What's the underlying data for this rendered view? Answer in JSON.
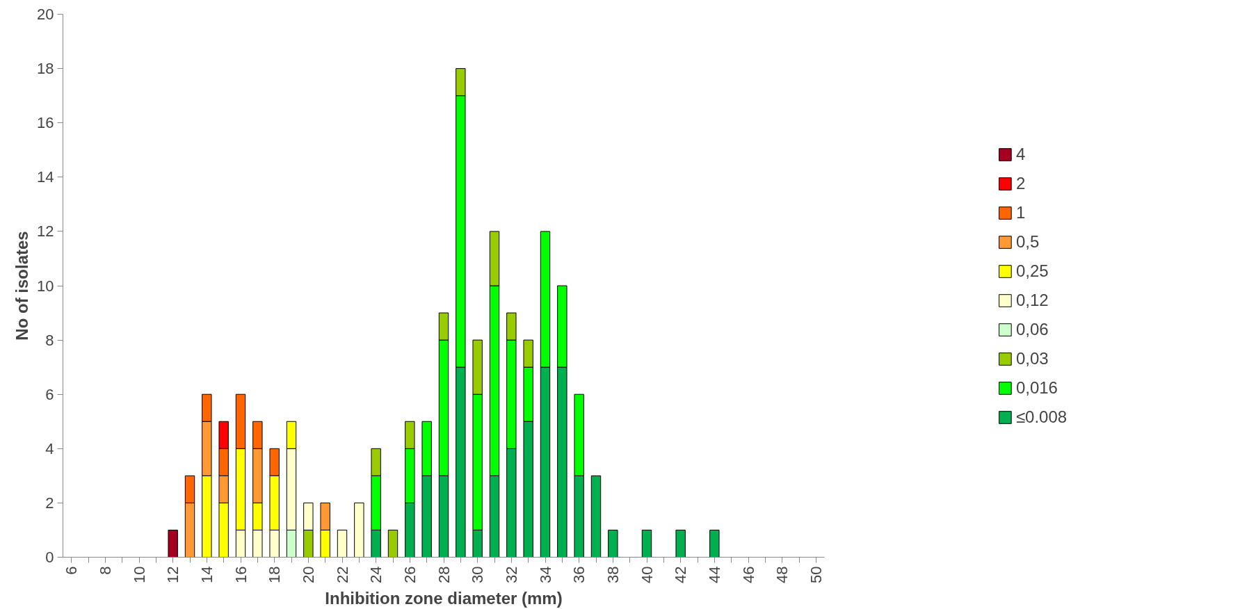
{
  "chart_data": {
    "type": "bar",
    "stacked": true,
    "xlabel": "Inhibition zone diameter (mm)",
    "ylabel": "No of isolates",
    "categories": [
      "6",
      null,
      "8",
      null,
      "10",
      null,
      "12",
      null,
      "14",
      null,
      "16",
      null,
      "18",
      null,
      "20",
      null,
      "22",
      null,
      "24",
      null,
      "26",
      null,
      "28",
      null,
      "30",
      null,
      "32",
      null,
      "34",
      null,
      "36",
      null,
      "38",
      null,
      "40",
      null,
      "42",
      null,
      "44",
      null,
      "46",
      null,
      "48",
      null,
      "50"
    ],
    "ylim": [
      0,
      20
    ],
    "yticks": [
      0,
      2,
      4,
      6,
      8,
      10,
      12,
      14,
      16,
      18,
      20
    ],
    "grid": false,
    "legend": "right",
    "series": [
      {
        "name": "≤0.008",
        "color": "#00b050",
        "values": [
          null,
          null,
          null,
          null,
          null,
          null,
          null,
          null,
          null,
          null,
          null,
          null,
          null,
          null,
          null,
          null,
          null,
          null,
          1,
          null,
          2,
          3,
          3,
          7,
          1,
          3,
          4,
          5,
          7,
          7,
          3,
          3,
          1,
          null,
          1,
          null,
          1,
          null,
          1,
          null,
          null,
          null,
          null,
          null,
          null
        ]
      },
      {
        "name": "0,016",
        "color": "#00ff00",
        "values": [
          null,
          null,
          null,
          null,
          null,
          null,
          null,
          null,
          null,
          null,
          null,
          null,
          null,
          null,
          null,
          null,
          null,
          null,
          2,
          null,
          2,
          2,
          5,
          10,
          5,
          7,
          4,
          2,
          5,
          3,
          3,
          null,
          null,
          null,
          null,
          null,
          null,
          null,
          null,
          null,
          null,
          null,
          null,
          null,
          null
        ]
      },
      {
        "name": "0,03",
        "color": "#99cc00",
        "values": [
          null,
          null,
          null,
          null,
          null,
          null,
          null,
          null,
          null,
          null,
          null,
          null,
          null,
          null,
          1,
          null,
          null,
          null,
          1,
          1,
          1,
          null,
          1,
          1,
          2,
          2,
          1,
          1,
          null,
          null,
          null,
          null,
          null,
          null,
          null,
          null,
          null,
          null,
          null,
          null,
          null,
          null,
          null,
          null,
          null
        ]
      },
      {
        "name": "0,06",
        "color": "#ccffcc",
        "values": [
          null,
          null,
          null,
          null,
          null,
          null,
          null,
          null,
          null,
          null,
          null,
          null,
          null,
          1,
          null,
          null,
          null,
          null,
          null,
          null,
          null,
          null,
          null,
          null,
          null,
          null,
          null,
          null,
          null,
          null,
          null,
          null,
          null,
          null,
          null,
          null,
          null,
          null,
          null,
          null,
          null,
          null,
          null,
          null,
          null
        ]
      },
      {
        "name": "0,12",
        "color": "#ffffcc",
        "values": [
          null,
          null,
          null,
          null,
          null,
          null,
          null,
          null,
          null,
          null,
          1,
          1,
          1,
          3,
          1,
          null,
          1,
          2,
          null,
          null,
          null,
          null,
          null,
          null,
          null,
          null,
          null,
          null,
          null,
          null,
          null,
          null,
          null,
          null,
          null,
          null,
          null,
          null,
          null,
          null,
          null,
          null,
          null,
          null,
          null
        ]
      },
      {
        "name": "0,25",
        "color": "#ffff00",
        "values": [
          null,
          null,
          null,
          null,
          null,
          null,
          null,
          null,
          3,
          2,
          3,
          1,
          2,
          1,
          null,
          1,
          null,
          null,
          null,
          null,
          null,
          null,
          null,
          null,
          null,
          null,
          null,
          null,
          null,
          null,
          null,
          null,
          null,
          null,
          null,
          null,
          null,
          null,
          null,
          null,
          null,
          null,
          null,
          null,
          null
        ]
      },
      {
        "name": "0,5",
        "color": "#ff9933",
        "values": [
          null,
          null,
          null,
          null,
          null,
          null,
          null,
          2,
          2,
          1,
          null,
          2,
          null,
          null,
          null,
          1,
          null,
          null,
          null,
          null,
          null,
          null,
          null,
          null,
          null,
          null,
          null,
          null,
          null,
          null,
          null,
          null,
          null,
          null,
          null,
          null,
          null,
          null,
          null,
          null,
          null,
          null,
          null,
          null,
          null
        ]
      },
      {
        "name": "1",
        "color": "#ff6600",
        "values": [
          null,
          null,
          null,
          null,
          null,
          null,
          null,
          1,
          1,
          1,
          2,
          1,
          1,
          null,
          null,
          null,
          null,
          null,
          null,
          null,
          null,
          null,
          null,
          null,
          null,
          null,
          null,
          null,
          null,
          null,
          null,
          null,
          null,
          null,
          null,
          null,
          null,
          null,
          null,
          null,
          null,
          null,
          null,
          null,
          null
        ]
      },
      {
        "name": "2",
        "color": "#ff0000",
        "values": [
          null,
          null,
          null,
          null,
          null,
          null,
          null,
          null,
          null,
          1,
          null,
          null,
          null,
          null,
          null,
          null,
          null,
          null,
          null,
          null,
          null,
          null,
          null,
          null,
          null,
          null,
          null,
          null,
          null,
          null,
          null,
          null,
          null,
          null,
          null,
          null,
          null,
          null,
          null,
          null,
          null,
          null,
          null,
          null,
          null
        ]
      },
      {
        "name": "4",
        "color": "#a50021",
        "values": [
          null,
          null,
          null,
          null,
          null,
          null,
          1,
          null,
          null,
          null,
          null,
          null,
          null,
          null,
          null,
          null,
          null,
          null,
          null,
          null,
          null,
          null,
          null,
          null,
          null,
          null,
          null,
          null,
          null,
          null,
          null,
          null,
          null,
          null,
          null,
          null,
          null,
          null,
          null,
          null,
          null,
          null,
          null,
          null,
          null
        ]
      }
    ]
  }
}
